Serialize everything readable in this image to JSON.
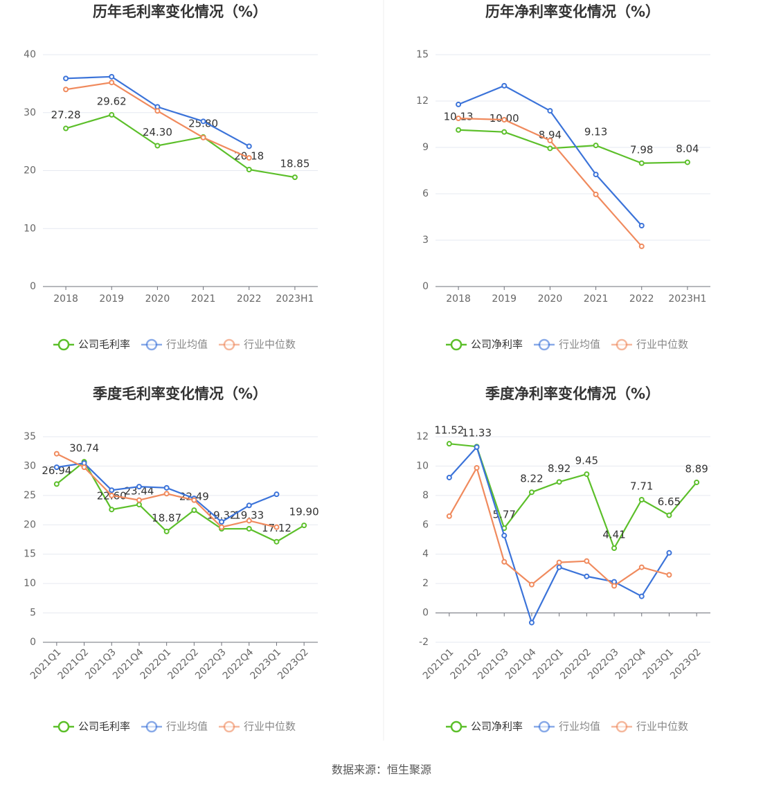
{
  "chart_data": [
    {
      "type": "line",
      "title": "历年毛利率变化情况（%）",
      "categories": [
        "2018",
        "2019",
        "2020",
        "2021",
        "2022",
        "2023H1"
      ],
      "ylim": [
        0,
        40
      ],
      "yticks": [
        0,
        10,
        20,
        30,
        40
      ],
      "grid": true,
      "legend": "bottom",
      "series": [
        {
          "name": "公司毛利率",
          "color": "#5cbf2a",
          "values": [
            27.28,
            29.62,
            24.3,
            25.8,
            20.18,
            18.85
          ],
          "value_labels": [
            "27.28",
            "29.62",
            "24.30",
            "25.80",
            "20.18",
            "18.85"
          ]
        },
        {
          "name": "行业均值",
          "color": "#3b73d9",
          "values": [
            35.9,
            36.2,
            31.0,
            28.5,
            24.2,
            null
          ]
        },
        {
          "name": "行业中位数",
          "color": "#f08a5d",
          "values": [
            34.0,
            35.2,
            30.3,
            25.7,
            22.2,
            null
          ]
        }
      ]
    },
    {
      "type": "line",
      "title": "历年净利率变化情况（%）",
      "categories": [
        "2018",
        "2019",
        "2020",
        "2021",
        "2022",
        "2023H1"
      ],
      "ylim": [
        0,
        15
      ],
      "yticks": [
        0,
        3,
        6,
        9,
        12,
        15
      ],
      "grid": true,
      "legend": "bottom",
      "series": [
        {
          "name": "公司净利率",
          "color": "#5cbf2a",
          "values": [
            10.13,
            10.0,
            8.94,
            9.13,
            7.98,
            8.04
          ],
          "value_labels": [
            "10.13",
            "10.00",
            "8.94",
            "9.13",
            "7.98",
            "8.04"
          ]
        },
        {
          "name": "行业均值",
          "color": "#3b73d9",
          "values": [
            11.78,
            12.99,
            11.37,
            7.25,
            3.94,
            null
          ]
        },
        {
          "name": "行业中位数",
          "color": "#f08a5d",
          "values": [
            10.88,
            10.79,
            9.45,
            5.96,
            2.6,
            null
          ]
        }
      ]
    },
    {
      "type": "line",
      "title": "季度毛利率变化情况（%）",
      "categories": [
        "2021Q1",
        "2021Q2",
        "2021Q3",
        "2021Q4",
        "2022Q1",
        "2022Q2",
        "2022Q3",
        "2022Q4",
        "2023Q1",
        "2023Q2"
      ],
      "ylim": [
        0,
        35
      ],
      "yticks": [
        0,
        5,
        10,
        15,
        20,
        25,
        30,
        35
      ],
      "grid": true,
      "legend": "bottom",
      "series": [
        {
          "name": "公司毛利率",
          "color": "#5cbf2a",
          "values": [
            26.94,
            30.74,
            22.6,
            23.44,
            18.87,
            22.49,
            19.32,
            19.33,
            17.12,
            19.9
          ],
          "value_labels": [
            "26.94",
            "30.74",
            "22.60",
            "23.44",
            "18.87",
            "22.49",
            "19.32",
            "19.33",
            "17.12",
            "19.90"
          ]
        },
        {
          "name": "行业均值",
          "color": "#3b73d9",
          "values": [
            29.8,
            30.5,
            25.9,
            26.5,
            26.3,
            24.5,
            20.5,
            23.3,
            25.2,
            null
          ]
        },
        {
          "name": "行业中位数",
          "color": "#f08a5d",
          "values": [
            32.1,
            29.8,
            25.0,
            24.2,
            25.3,
            24.2,
            19.6,
            20.7,
            19.6,
            null
          ]
        }
      ]
    },
    {
      "type": "line",
      "title": "季度净利率变化情况（%）",
      "categories": [
        "2021Q1",
        "2021Q2",
        "2021Q3",
        "2021Q4",
        "2022Q1",
        "2022Q2",
        "2022Q3",
        "2022Q4",
        "2023Q1",
        "2023Q2"
      ],
      "ylim": [
        -2,
        12
      ],
      "yticks": [
        -2,
        0,
        2,
        4,
        6,
        8,
        10,
        12
      ],
      "grid": true,
      "legend": "bottom",
      "series": [
        {
          "name": "公司净利率",
          "color": "#5cbf2a",
          "values": [
            11.52,
            11.33,
            5.77,
            8.22,
            8.92,
            9.45,
            4.41,
            7.71,
            6.65,
            8.89
          ],
          "value_labels": [
            "11.52",
            "11.33",
            "5.77",
            "8.22",
            "8.92",
            "9.45",
            "4.41",
            "7.71",
            "6.65",
            "8.89"
          ]
        },
        {
          "name": "行业均值",
          "color": "#3b73d9",
          "values": [
            9.22,
            11.29,
            5.27,
            -0.66,
            3.11,
            2.49,
            2.12,
            1.13,
            4.09,
            null
          ]
        },
        {
          "name": "行业中位数",
          "color": "#f08a5d",
          "values": [
            6.59,
            9.88,
            3.48,
            1.93,
            3.44,
            3.53,
            1.84,
            3.11,
            2.59,
            null
          ]
        }
      ]
    }
  ],
  "source": "数据来源：恒生聚源"
}
